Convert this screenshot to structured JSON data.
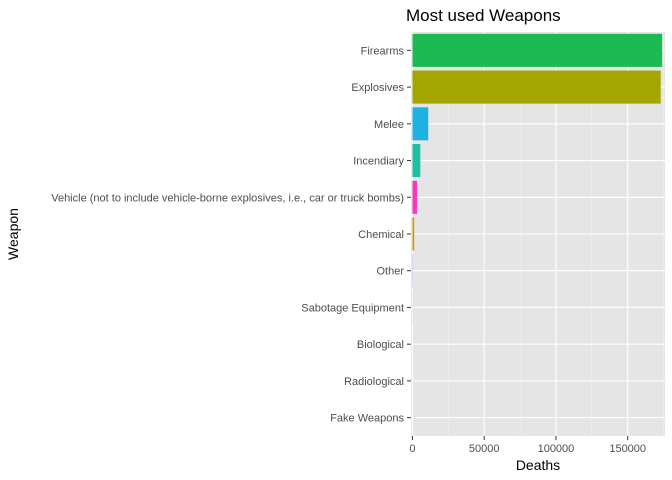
{
  "chart_data": {
    "type": "bar",
    "orientation": "horizontal",
    "title": "Most used Weapons",
    "xlabel": "Deaths",
    "ylabel": "Weapon",
    "xlim": [
      -1000,
      176000
    ],
    "xticks": [
      0,
      50000,
      100000,
      150000
    ],
    "xtick_labels": [
      "0",
      "50000",
      "100000",
      "150000"
    ],
    "grid": true,
    "legend": "none",
    "categories": [
      "Firearms",
      "Explosives",
      "Melee",
      "Incendiary",
      "Vehicle (not to include vehicle-borne explosives, i.e., car or truck bombs)",
      "Chemical",
      "Other",
      "Sabotage Equipment",
      "Biological",
      "Radiological",
      "Fake Weapons"
    ],
    "values": [
      174000,
      173000,
      11000,
      5500,
      3200,
      1200,
      300,
      100,
      30,
      0,
      0
    ],
    "colors": [
      "#1DB954",
      "#A3A500",
      "#1FB1E0",
      "#1FBFA3",
      "#F23DBB",
      "#D89000",
      "#A0A0FF",
      "#E76BF3",
      "#00B0F6",
      "#00BF7D",
      "#F8766D"
    ]
  }
}
